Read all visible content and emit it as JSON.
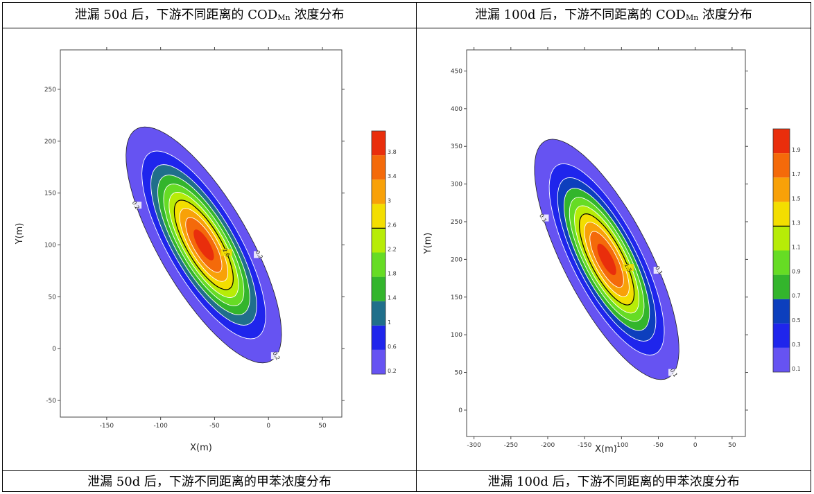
{
  "captions": {
    "top_left": {
      "text": "泄漏 50d 后，下游不同距离的 COD",
      "sub": "Mn",
      "tail": " 浓度分布"
    },
    "top_right": {
      "text": "泄漏 100d 后，下游不同距离的 COD",
      "sub": "Mn",
      "tail": " 浓度分布"
    },
    "bottom_left": "泄漏 50d 后，下游不同距离的甲苯浓度分布",
    "bottom_right": "泄漏 100d 后，下游不同距离的甲苯浓度分布"
  },
  "chart_data": [
    {
      "type": "heatmap",
      "subtype": "contour",
      "xlabel": "X(m)",
      "ylabel": "Y(m)",
      "xlim": [
        -193,
        68
      ],
      "ylim": [
        -66,
        288
      ],
      "xticks": [
        -150,
        -100,
        -50,
        0,
        50
      ],
      "yticks": [
        -50,
        0,
        50,
        100,
        150,
        200,
        250
      ],
      "plume": {
        "center": [
          -60,
          100
        ],
        "semi_major": 128,
        "semi_minor": 42,
        "orientation_deg": 119,
        "peak": 4.0
      },
      "colorbar": {
        "ticks": [
          "3.8",
          "3.4",
          "3",
          "2.6",
          "2.2",
          "1.8",
          "1.4",
          "1",
          "0.6",
          "0.2"
        ],
        "levels": [
          0.2,
          0.6,
          1,
          1.4,
          1.8,
          2.2,
          2.6,
          3,
          3.4,
          3.8,
          4.0
        ],
        "colors": [
          "#6653f2",
          "#1f25ec",
          "#206f8b",
          "#33b52c",
          "#66dc24",
          "#b7ec07",
          "#f3de00",
          "#f8a108",
          "#f46a0a",
          "#e92e0c"
        ],
        "black_level": 2.6,
        "white_levels": [
          0.6,
          1,
          1.4,
          1.8,
          2.2,
          3,
          3.4
        ]
      },
      "contour_labels": [
        {
          "text": "0.2",
          "level": 0.2,
          "angle": 60
        },
        {
          "text": "0.2",
          "level": 0.2,
          "angle": 190
        },
        {
          "text": "0.2",
          "level": 0.2,
          "angle": 255
        },
        {
          "text": "2.6",
          "level": 2.6,
          "angle": 250
        }
      ]
    },
    {
      "type": "heatmap",
      "subtype": "contour",
      "xlabel": "X(m)",
      "ylabel": "Y(m)",
      "xlim": [
        -310,
        68
      ],
      "ylim": [
        -35,
        478
      ],
      "xticks": [
        -300,
        -250,
        -200,
        -150,
        -100,
        -50,
        0,
        50
      ],
      "yticks": [
        0,
        50,
        100,
        150,
        200,
        250,
        300,
        350,
        400,
        450
      ],
      "plume": {
        "center": [
          -120,
          200
        ],
        "semi_major": 178,
        "semi_minor": 58,
        "orientation_deg": 118,
        "peak": 2.0
      },
      "colorbar": {
        "ticks": [
          "1.9",
          "1.7",
          "1.5",
          "1.3",
          "1.1",
          "0.9",
          "0.7",
          "0.5",
          "0.3",
          "0.1"
        ],
        "levels": [
          0.1,
          0.3,
          0.5,
          0.7,
          0.9,
          1.1,
          1.3,
          1.5,
          1.7,
          1.9,
          2.0
        ],
        "colors": [
          "#6653f2",
          "#1f25ec",
          "#0d3fbd",
          "#33b52c",
          "#66dc24",
          "#b7ec07",
          "#f3de00",
          "#f8a108",
          "#f46a0a",
          "#e92e0c"
        ],
        "black_level": 1.3,
        "white_levels": [
          0.3,
          0.5,
          0.7,
          0.9,
          1.1,
          1.5,
          1.7
        ]
      },
      "contour_labels": [
        {
          "text": "0.1",
          "level": 0.1,
          "angle": 60
        },
        {
          "text": "0.1",
          "level": 0.1,
          "angle": 190
        },
        {
          "text": "0.1",
          "level": 0.1,
          "angle": 255
        },
        {
          "text": "1.3",
          "level": 1.3,
          "angle": 250
        }
      ]
    }
  ]
}
